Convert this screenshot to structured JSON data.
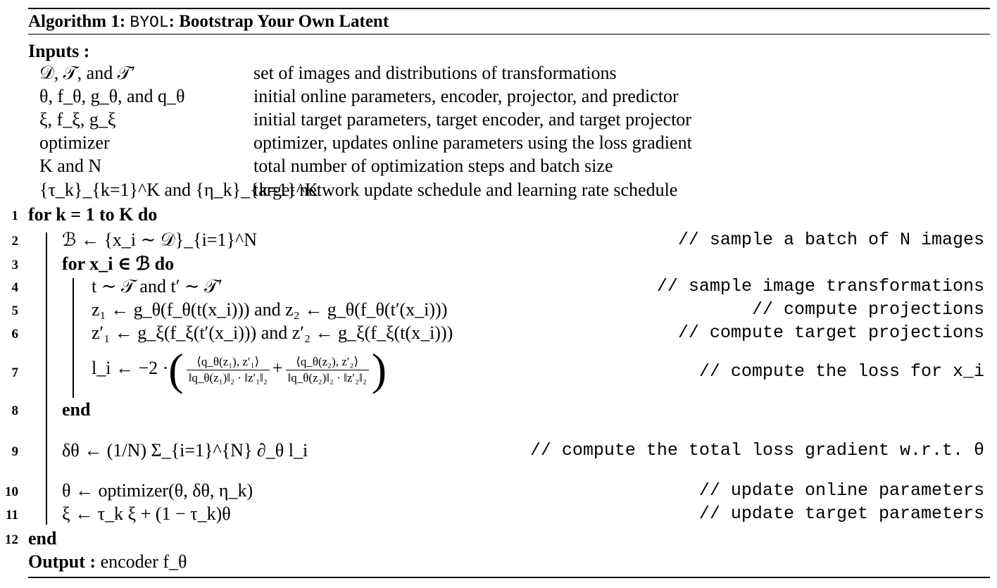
{
  "title": {
    "prefix": "Algorithm 1:",
    "code": "BYOL",
    "rest": ": Bootstrap Your Own Latent"
  },
  "inputs": {
    "label": "Inputs :",
    "rows": [
      {
        "sym": "𝒟, 𝒯, and 𝒯′",
        "desc": "set of images and distributions of transformations"
      },
      {
        "sym": "θ, f_θ, g_θ, and q_θ",
        "desc": "initial online parameters, encoder, projector, and predictor"
      },
      {
        "sym": "ξ, f_ξ, g_ξ",
        "desc": "initial target parameters, target encoder, and target projector"
      },
      {
        "sym": "optimizer",
        "desc": "optimizer, updates online parameters using the loss gradient"
      },
      {
        "sym": "K and N",
        "desc": "total number of optimization steps and batch size"
      },
      {
        "sym": "{τ_k}_{k=1}^K and {η_k}_{k=1}^K",
        "desc": "target network update schedule and learning rate schedule"
      }
    ]
  },
  "lines": [
    {
      "n": "1",
      "code": "for k = 1 to K do",
      "comment": ""
    },
    {
      "n": "2",
      "code": "ℬ ← {x_i ∼ 𝒟}_{i=1}^N",
      "comment": "// sample a batch of N images"
    },
    {
      "n": "3",
      "code": "for x_i ∈ ℬ do",
      "comment": ""
    },
    {
      "n": "4",
      "code": "t ∼ 𝒯 and t′ ∼ 𝒯′",
      "comment": "// sample image transformations"
    },
    {
      "n": "5",
      "code": "z₁ ← g_θ(f_θ(t(x_i))) and z₂ ← g_θ(f_θ(t′(x_i)))",
      "comment": "// compute projections"
    },
    {
      "n": "6",
      "code": "z′₁ ← g_ξ(f_ξ(t′(x_i))) and z′₂ ← g_ξ(f_ξ(t(x_i)))",
      "comment": "// compute target projections"
    },
    {
      "n": "7",
      "code": "l_i ← −2 ·",
      "frac1_num": "⟨q_θ(z₁), z′₁⟩",
      "frac1_den": "‖q_θ(z₁)‖₂ · ‖z′₁‖₂",
      "plus": "+",
      "frac2_num": "⟨q_θ(z₂), z′₂⟩",
      "frac2_den": "‖q_θ(z₂)‖₂ · ‖z′₂‖₂",
      "comment": "// compute the loss for x_i"
    },
    {
      "n": "8",
      "code": "end",
      "comment": ""
    },
    {
      "n": "9",
      "code": "δθ ← (1/N) Σ_{i=1}^{N} ∂_θ l_i",
      "comment": "// compute the total loss gradient w.r.t. θ"
    },
    {
      "n": "10",
      "code": "θ ← optimizer(θ, δθ, η_k)",
      "comment": "// update online parameters"
    },
    {
      "n": "11",
      "code": "ξ ← τ_k ξ + (1 − τ_k)θ",
      "comment": "// update target parameters"
    },
    {
      "n": "12",
      "code": "end",
      "comment": ""
    }
  ],
  "output": {
    "label": "Output :",
    "value": "encoder f_θ"
  }
}
